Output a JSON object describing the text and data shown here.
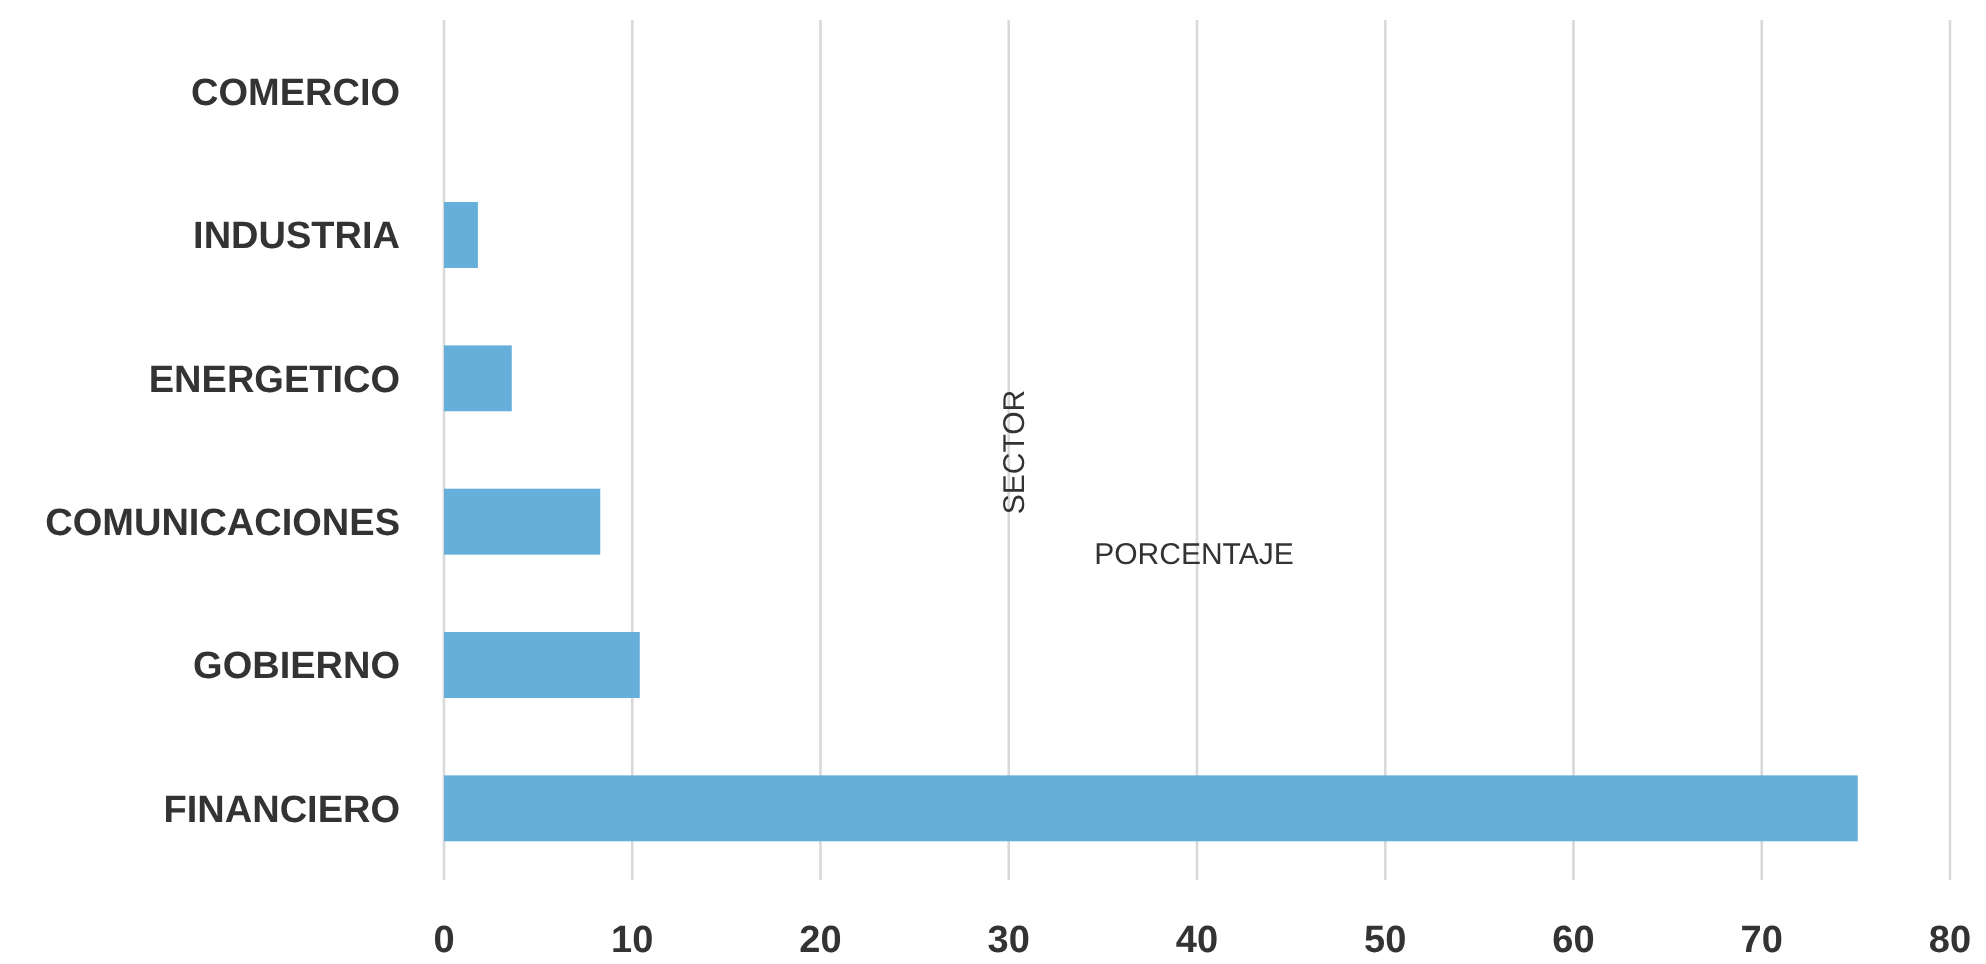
{
  "chart_data": {
    "type": "bar",
    "orientation": "horizontal",
    "categories": [
      "COMERCIO",
      "INDUSTRIA",
      "ENERGETICO",
      "COMUNICACIONES",
      "GOBIERNO",
      "FINANCIERO"
    ],
    "values": [
      0,
      1.8,
      3.6,
      8.3,
      10.4,
      75.1
    ],
    "color": "#66afda",
    "xlabel": "PORCENTAJE",
    "ylabel": "SECTOR",
    "xlim": [
      0,
      80
    ],
    "xticks": [
      0,
      10,
      20,
      30,
      40,
      50,
      60,
      70,
      80
    ],
    "grid": "x"
  }
}
